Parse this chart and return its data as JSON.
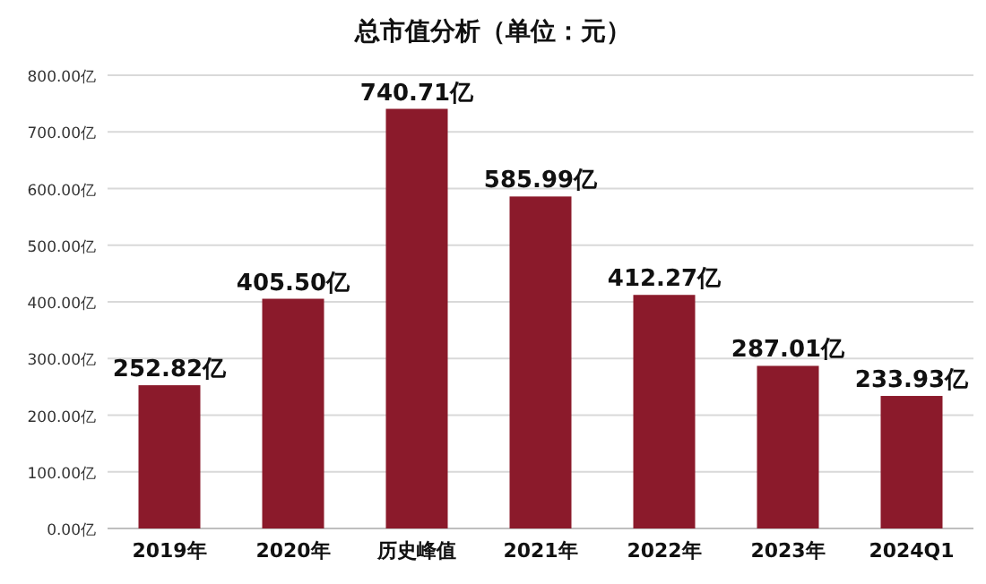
{
  "chart_data": {
    "type": "bar",
    "title": "总市值分析（单位：元）",
    "categories": [
      "2019年",
      "2020年",
      "历史峰值",
      "2021年",
      "2022年",
      "2023年",
      "2024Q1"
    ],
    "values": [
      252.82,
      405.5,
      740.71,
      585.99,
      412.27,
      287.01,
      233.93
    ],
    "value_labels": [
      "252.82亿",
      "405.50亿",
      "740.71亿",
      "585.99亿",
      "412.27亿",
      "287.01亿",
      "233.93亿"
    ],
    "color": "#8b1a2b",
    "ylim": [
      0,
      800
    ],
    "yticks": [
      {
        "value": 0,
        "label": "0.00亿"
      },
      {
        "value": 100,
        "label": "100.00亿"
      },
      {
        "value": 200,
        "label": "200.00亿"
      },
      {
        "value": 300,
        "label": "300.00亿"
      },
      {
        "value": 400,
        "label": "400.00亿"
      },
      {
        "value": 500,
        "label": "500.00亿"
      },
      {
        "value": 600,
        "label": "600.00亿"
      },
      {
        "value": 700,
        "label": "700.00亿"
      },
      {
        "value": 800,
        "label": "800.00亿"
      }
    ],
    "grid": "y"
  }
}
